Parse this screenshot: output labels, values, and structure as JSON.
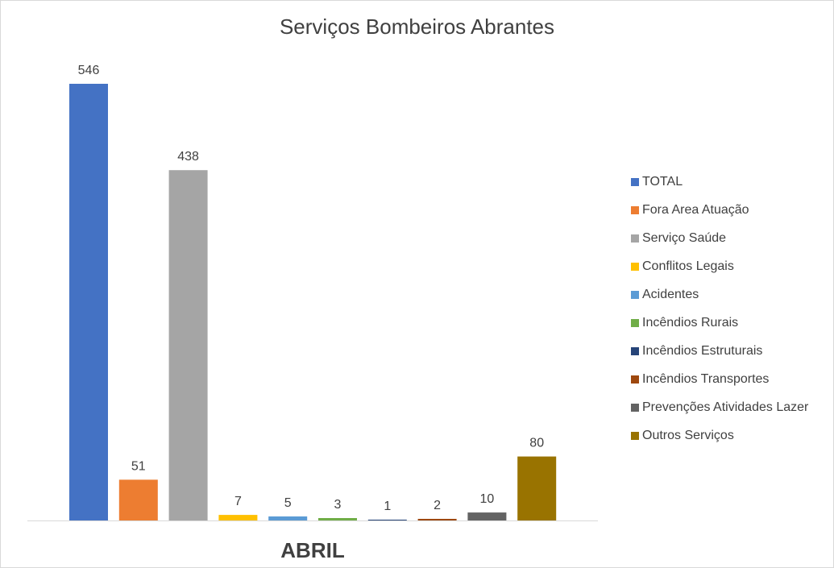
{
  "chart_data": {
    "type": "bar",
    "title": "Serviços Bombeiros Abrantes",
    "categories": [
      "ABRIL"
    ],
    "series": [
      {
        "name": "TOTAL",
        "values": [
          546
        ],
        "color": "#4472c4"
      },
      {
        "name": "Fora Area Atuação",
        "values": [
          51
        ],
        "color": "#ed7d31"
      },
      {
        "name": "Serviço Saúde",
        "values": [
          438
        ],
        "color": "#a5a5a5"
      },
      {
        "name": "Conflitos Legais",
        "values": [
          7
        ],
        "color": "#ffc000"
      },
      {
        "name": "Acidentes",
        "values": [
          5
        ],
        "color": "#5b9bd5"
      },
      {
        "name": "Incêndios Rurais",
        "values": [
          3
        ],
        "color": "#70ad47"
      },
      {
        "name": "Incêndios Estruturais",
        "values": [
          1
        ],
        "color": "#264478"
      },
      {
        "name": "Incêndios Transportes",
        "values": [
          2
        ],
        "color": "#9e480e"
      },
      {
        "name": "Prevenções Atividades Lazer",
        "values": [
          10
        ],
        "color": "#636363"
      },
      {
        "name": "Outros Serviços",
        "values": [
          80
        ],
        "color": "#997300"
      }
    ],
    "xlabel": "",
    "ylabel": "",
    "ylim": [
      0,
      546
    ],
    "grid": false,
    "legend_position": "right",
    "data_labels": true
  }
}
